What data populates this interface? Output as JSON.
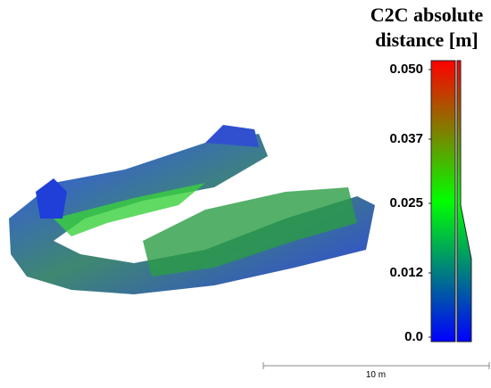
{
  "colorbar": {
    "title": [
      "C2C absolute",
      "distance [m]"
    ],
    "ylim": [
      0,
      0.05
    ],
    "ticks": [
      {
        "value": 0.05,
        "label": "0.050"
      },
      0.037,
      0.025,
      0.012,
      {
        "value": 0,
        "label": "0.0"
      }
    ]
  },
  "scale_bar": {
    "label": "10 m"
  }
}
